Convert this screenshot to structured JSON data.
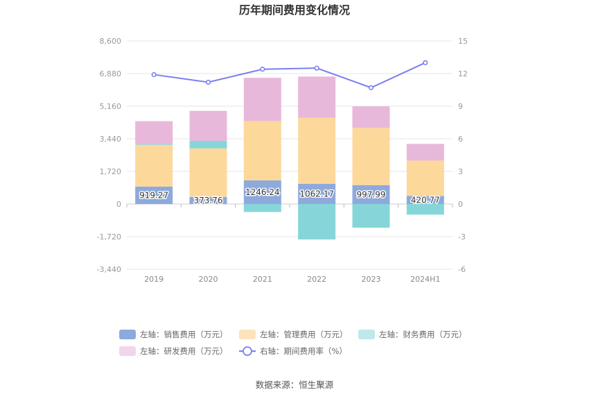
{
  "chart_data": {
    "type": "bar",
    "title": "历年期间费用变化情况",
    "categories": [
      "2019",
      "2020",
      "2021",
      "2022",
      "2023",
      "2024H1"
    ],
    "left_axis": {
      "ticks": [
        "8,600",
        "6,880",
        "5,160",
        "3,440",
        "1,720",
        "0",
        "-1,720",
        "-3,440"
      ],
      "min": -3440,
      "max": 8600,
      "unit": "万元"
    },
    "right_axis": {
      "ticks": [
        "15",
        "12",
        "9",
        "6",
        "3",
        "0",
        "-3",
        "-6"
      ],
      "min": -6,
      "max": 15,
      "unit": "%"
    },
    "series": [
      {
        "name": "左轴：销售费用（万元）",
        "axis": "left",
        "type": "bar",
        "color": "#8eaadc",
        "values": [
          919.27,
          373.76,
          1246.24,
          1062.17,
          997.99,
          420.77
        ],
        "labels": [
          "919.27",
          "373.76",
          "1246.24",
          "1062.17",
          "997.99",
          "420.77"
        ]
      },
      {
        "name": "左轴：管理费用（万元）",
        "axis": "left",
        "type": "bar",
        "color": "#fdd89b",
        "values": [
          2200,
          2560,
          3130,
          3480,
          3020,
          1870
        ]
      },
      {
        "name": "左轴：财务费用（万元）",
        "axis": "left",
        "type": "bar",
        "color": "#86d6d9",
        "values": [
          40,
          400,
          -420,
          -1870,
          -1250,
          -560
        ]
      },
      {
        "name": "左轴：研发费用（万元）",
        "axis": "left",
        "type": "bar",
        "color": "#e8b8da",
        "values": [
          1210,
          1580,
          2280,
          2180,
          1130,
          880
        ]
      },
      {
        "name": "右轴：期间费用率（%）",
        "axis": "right",
        "type": "line",
        "color": "#7b7ef0",
        "values": [
          11.9,
          11.2,
          12.4,
          12.5,
          10.7,
          13.0
        ]
      }
    ],
    "grid": true,
    "legend_position": "bottom"
  },
  "source": "数据来源：恒生聚源"
}
